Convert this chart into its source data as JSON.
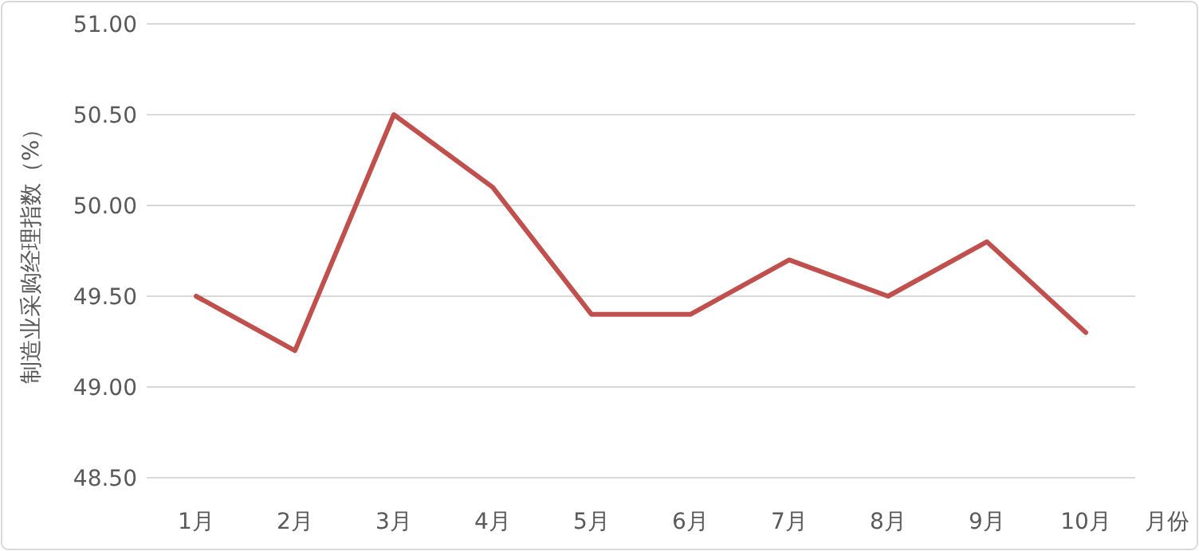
{
  "chart_data": {
    "type": "line",
    "ylabel": "制造业采购经理指数（%）",
    "xlabel": "月份",
    "categories": [
      "1月",
      "2月",
      "3月",
      "4月",
      "5月",
      "6月",
      "7月",
      "8月",
      "9月",
      "10月"
    ],
    "series": [
      {
        "color": "#c0504d",
        "values": [
          49.5,
          49.2,
          50.5,
          50.1,
          49.4,
          49.4,
          49.7,
          49.5,
          49.8,
          49.3
        ]
      }
    ],
    "ylim": [
      48.5,
      51
    ],
    "yticks": [
      {
        "value": 48.5,
        "label": "48.50"
      },
      {
        "value": 49,
        "label": "49.00"
      },
      {
        "value": 49.5,
        "label": "49.50"
      },
      {
        "value": 50,
        "label": "50.00"
      },
      {
        "value": 50.5,
        "label": "50.50"
      },
      {
        "value": 51,
        "label": "51.00"
      }
    ],
    "grid": "y",
    "marker": "none",
    "line_style": "solid"
  }
}
